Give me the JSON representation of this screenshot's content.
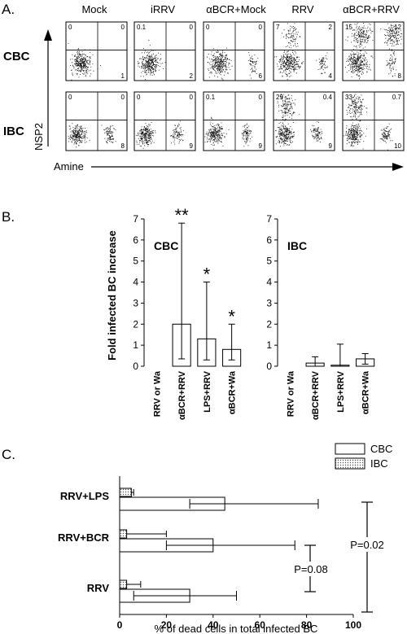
{
  "panel_labels": {
    "a": "A.",
    "b": "B.",
    "c": "C."
  },
  "panel_a": {
    "columns": [
      "Mock",
      "iRRV",
      "αBCR+Mock",
      "RRV",
      "αBCR+RRV"
    ],
    "rows": [
      "CBC",
      "IBC"
    ],
    "y_axis_label": "NSP2",
    "x_axis_label": "Amine",
    "quadrant_values": [
      [
        {
          "ul": "0",
          "ur": "0",
          "lr": "1"
        },
        {
          "ul": "0.1",
          "ur": "0",
          "lr": "2"
        },
        {
          "ul": "0",
          "ur": "0",
          "lr": "6"
        },
        {
          "ul": "7",
          "ur": "2",
          "lr": "4"
        },
        {
          "ul": "15",
          "ur": "12",
          "lr": "8"
        }
      ],
      [
        {
          "ul": "0",
          "ur": "0",
          "lr": "8"
        },
        {
          "ul": "0",
          "ur": "0",
          "lr": "9"
        },
        {
          "ul": "0.1",
          "ur": "0",
          "lr": "9"
        },
        {
          "ul": "29",
          "ur": "0.4",
          "lr": "9"
        },
        {
          "ul": "33",
          "ur": "0.7",
          "lr": "10"
        }
      ]
    ]
  },
  "chart_data": [
    {
      "type": "bar",
      "panel": "B-CBC",
      "title": "CBC",
      "ylabel": "Fold infected BC increase",
      "categories": [
        "RRV or Wa",
        "αBCR+RRV",
        "LPS+RRV",
        "αBCR+Wa"
      ],
      "values": [
        0,
        2.0,
        1.3,
        0.8
      ],
      "error_low": [
        0,
        0.35,
        0.3,
        0.3
      ],
      "error_high": [
        0,
        6.8,
        4.0,
        2.0
      ],
      "significance": [
        "",
        "**",
        "*",
        "*"
      ],
      "ylim": [
        0,
        7
      ],
      "yticks": [
        "0",
        "1",
        "2",
        "3",
        "4",
        "5",
        "6",
        "7"
      ]
    },
    {
      "type": "bar",
      "panel": "B-IBC",
      "title": "IBC",
      "categories": [
        "RRV or Wa",
        "αBCR+RRV",
        "LPS+RRV",
        "αBCR+Wa"
      ],
      "values": [
        0,
        0.15,
        0.05,
        0.35
      ],
      "error_low": [
        0,
        0.0,
        0.0,
        0.1
      ],
      "error_high": [
        0,
        0.45,
        1.05,
        0.6
      ],
      "ylim": [
        0,
        7
      ],
      "yticks": [
        "0",
        "1",
        "2",
        "3",
        "4",
        "5",
        "6",
        "7"
      ]
    },
    {
      "type": "bar",
      "panel": "C",
      "orientation": "horizontal",
      "xlabel": "% of dead cells in total infected BC",
      "categories": [
        "RRV+LPS",
        "RRV+BCR",
        "RRV"
      ],
      "series": [
        {
          "name": "IBC",
          "values": [
            5,
            3,
            3
          ],
          "error_high": [
            6,
            20,
            9
          ],
          "fill": "dotted"
        },
        {
          "name": "CBC",
          "values": [
            45,
            40,
            30
          ],
          "error_low": [
            30,
            20,
            6
          ],
          "error_high": [
            85,
            75,
            50
          ],
          "fill": "white"
        }
      ],
      "xlim": [
        0,
        100
      ],
      "xticks": [
        "0",
        "20",
        "40",
        "60",
        "80",
        "100"
      ],
      "annotations": [
        "P=0.08",
        "P=0.02"
      ],
      "legend_position": "top-right"
    }
  ]
}
